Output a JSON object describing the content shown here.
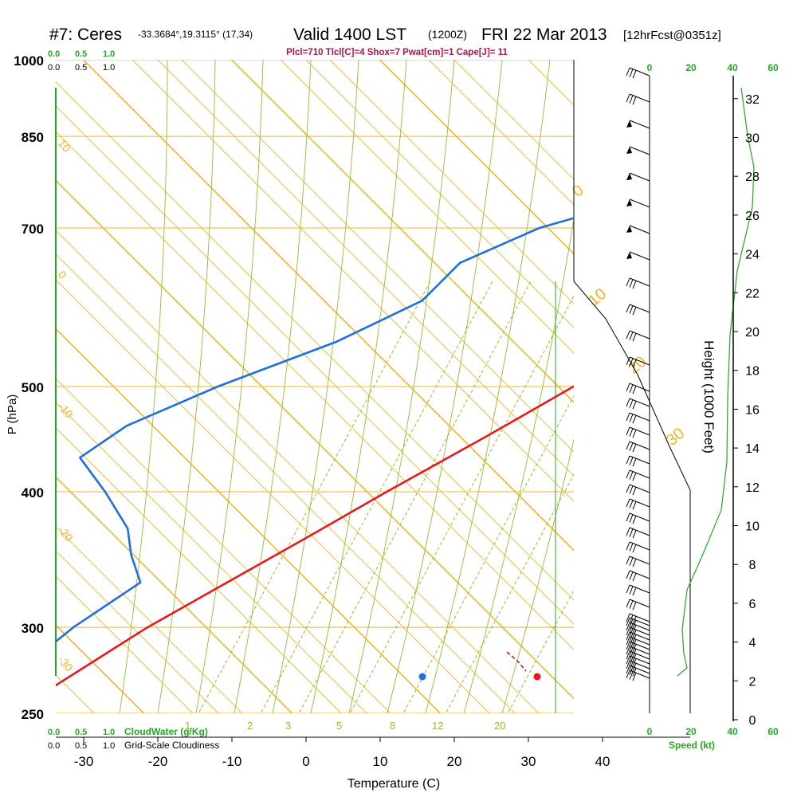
{
  "header": {
    "station": "#7: Ceres",
    "coords": "-33.3684°,19.3115° (17,34)",
    "valid": "Valid 1400 LST",
    "zulu": "(1200Z)",
    "date": "FRI 22 Mar 2013",
    "forecast": "[12hrFcst@0351z]",
    "indices": "Plcl=710 Tlcl[C]=4 Shox=7 Pwat[cm]=1 Cape[J]= 11"
  },
  "colors": {
    "temperature": "#e8181e",
    "dewpoint": "#1f6fe0",
    "isobar": "#f5b324",
    "dry_adiabat": "#f5b324",
    "moist_adiabat": "#8fc12a",
    "mixing_ratio": "#8fc12a",
    "cloud_axis": "#22aa22",
    "accent_title": "#b0134a"
  },
  "cloud_scale": {
    "top_green": [
      "0.0",
      "0.5",
      "1.0"
    ],
    "top_black": [
      "0.0",
      "0.5",
      "1.0"
    ],
    "bottom_green": [
      "0.0",
      "0.5",
      "1.0"
    ],
    "bottom_black": [
      "0.0",
      "0.5",
      "1.0"
    ],
    "cloud_water_label": "CloudWater (g/Kg)",
    "cloudiness_label": "Grid-Scale Cloudiness"
  },
  "speed_scale": {
    "top_ticks": [
      "0",
      "20",
      "40",
      "60"
    ],
    "bottom_ticks": [
      "0",
      "20",
      "40",
      "60"
    ],
    "label": "Speed (kt)"
  },
  "labels": {
    "dry_adiabats": [
      "10",
      "0",
      "-10",
      "-20",
      "-30"
    ],
    "isotherms": [
      "0",
      "10",
      "20",
      "30"
    ],
    "mixing_ratio": [
      "1",
      "2",
      "3",
      "5",
      "8",
      "12",
      "20"
    ]
  },
  "chart_data": {
    "type": "line",
    "title": "#7: Ceres -33.3684°,19.3115° (17,34)  Valid 1400 LST (1200Z) FRI 22 Mar 2013 [12hrFcst@0351z]",
    "xlabel": "Temperature (C)",
    "ylabel": "P (hPa)",
    "y2label": "Height (1000 Feet)",
    "x_ticks": [
      -30,
      -20,
      -10,
      0,
      10,
      20,
      30,
      40
    ],
    "xlim": [
      -34,
      36
    ],
    "ylim": [
      1000,
      250
    ],
    "y_ticks": [
      1000,
      850,
      700,
      500,
      400,
      300,
      250
    ],
    "y_scale": "log-pressure",
    "skew": "45 degrees",
    "height_ticks": [
      0,
      2,
      4,
      6,
      8,
      10,
      12,
      14,
      16,
      18,
      20,
      22,
      24,
      26,
      28,
      30,
      32
    ],
    "series": [
      {
        "name": "Temperature",
        "points": [
          {
            "p": 262,
            "t": -38
          },
          {
            "p": 300,
            "t": -33
          },
          {
            "p": 360,
            "t": -24
          },
          {
            "p": 400,
            "t": -19
          },
          {
            "p": 450,
            "t": -13
          },
          {
            "p": 500,
            "t": -8
          },
          {
            "p": 550,
            "t": -3
          },
          {
            "p": 600,
            "t": 1
          },
          {
            "p": 650,
            "t": 4
          },
          {
            "p": 700,
            "t": 7
          },
          {
            "p": 750,
            "t": 10
          },
          {
            "p": 800,
            "t": 13
          },
          {
            "p": 850,
            "t": 15
          },
          {
            "p": 880,
            "t": 17
          },
          {
            "p": 900,
            "t": 20
          },
          {
            "p": 915,
            "t": 26
          }
        ]
      },
      {
        "name": "Dewpoint",
        "points": [
          {
            "p": 262,
            "t": -45
          },
          {
            "p": 300,
            "t": -43
          },
          {
            "p": 330,
            "t": -40
          },
          {
            "p": 350,
            "t": -45
          },
          {
            "p": 370,
            "t": -49
          },
          {
            "p": 400,
            "t": -57
          },
          {
            "p": 430,
            "t": -65
          },
          {
            "p": 460,
            "t": -63
          },
          {
            "p": 500,
            "t": -56
          },
          {
            "p": 550,
            "t": -46
          },
          {
            "p": 600,
            "t": -40
          },
          {
            "p": 650,
            "t": -40
          },
          {
            "p": 700,
            "t": -34
          },
          {
            "p": 750,
            "t": -23
          },
          {
            "p": 800,
            "t": -16
          },
          {
            "p": 850,
            "t": -4
          },
          {
            "p": 880,
            "t": 0
          },
          {
            "p": 910,
            "t": 5
          },
          {
            "p": 915,
            "t": 7
          }
        ]
      }
    ],
    "surface_markers": [
      {
        "name": "surface-temperature",
        "t": 31,
        "p": 915
      },
      {
        "name": "surface-dewpoint",
        "t": 16,
        "p": 915
      }
    ]
  }
}
